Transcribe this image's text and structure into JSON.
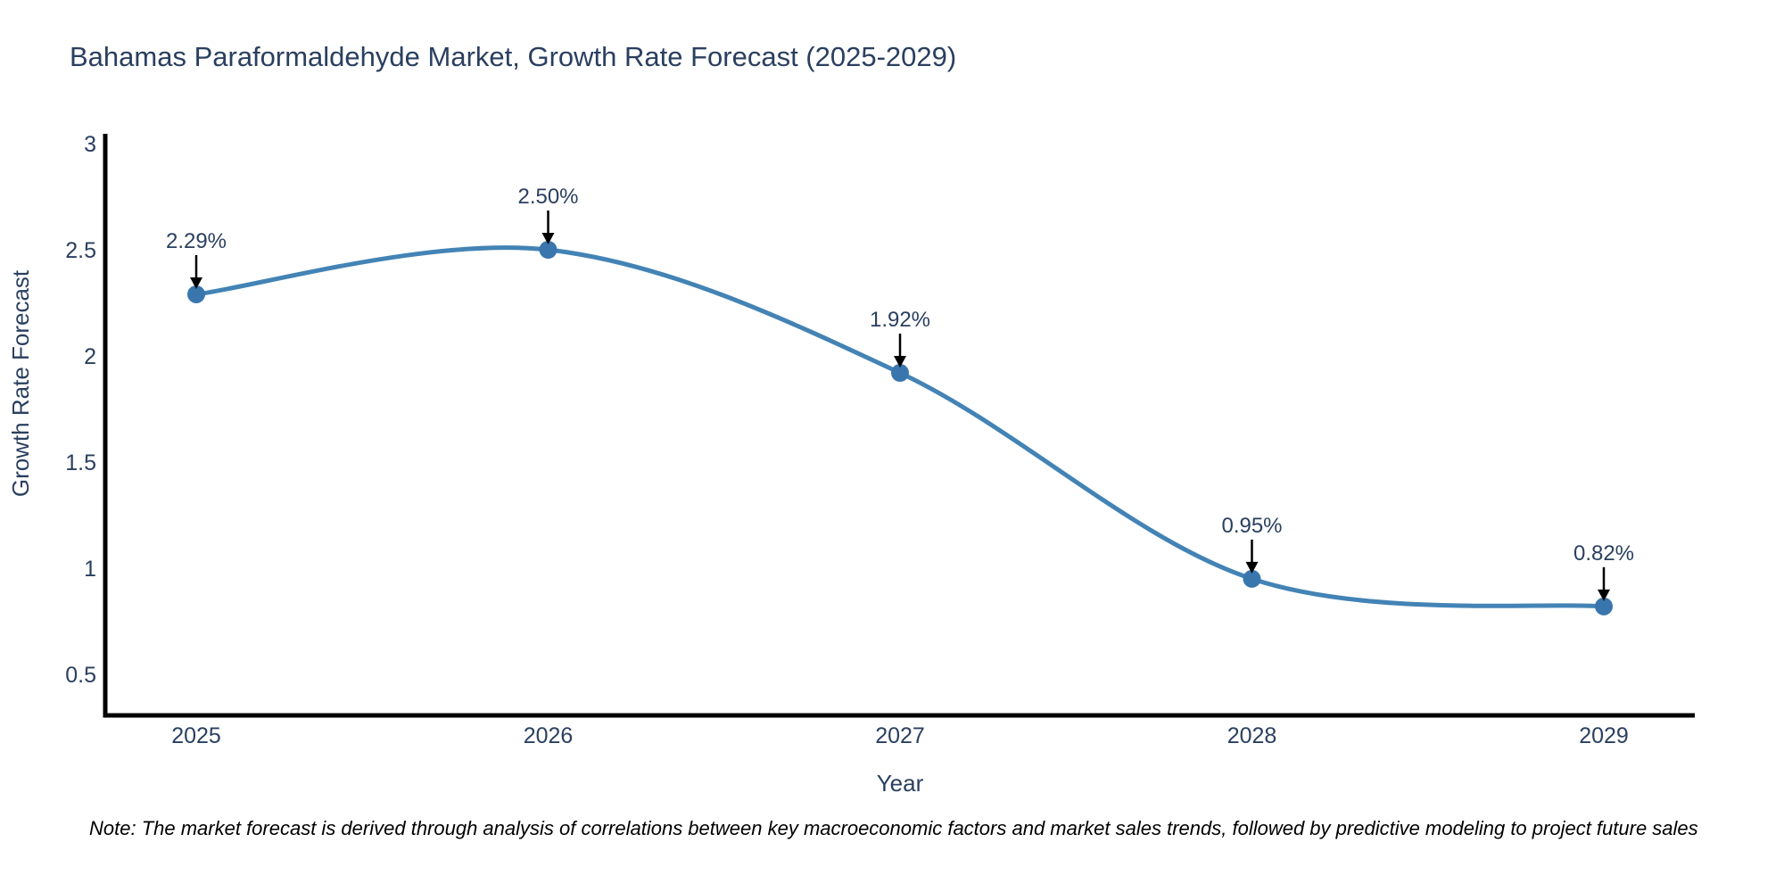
{
  "chart_data": {
    "type": "line",
    "title": "Bahamas Paraformaldehyde Market, Growth Rate Forecast (2025-2029)",
    "xlabel": "Year",
    "ylabel": "Growth Rate Forecast",
    "categories": [
      "2025",
      "2026",
      "2027",
      "2028",
      "2029"
    ],
    "values": [
      2.29,
      2.5,
      1.92,
      0.95,
      0.82
    ],
    "point_labels": [
      "2.29%",
      "2.50%",
      "1.92%",
      "0.95%",
      "0.82%"
    ],
    "yticks": [
      3,
      2.5,
      2,
      1.5,
      1,
      0.5
    ],
    "ylim": [
      0.3,
      3.15
    ],
    "grid": false,
    "legend": "none",
    "line_shape": "spline",
    "note": "Note: The market forecast is derived through analysis of correlations between key macroeconomic factors and market sales trends, followed by predictive modeling to project future sales",
    "colors": {
      "line": "#4383b5",
      "marker": "#3a76ae",
      "axis": "#000000",
      "text": "#2a3f5f",
      "annotation_arrow": "#000000",
      "note_text": "#000000",
      "background": "#ffffff"
    }
  }
}
